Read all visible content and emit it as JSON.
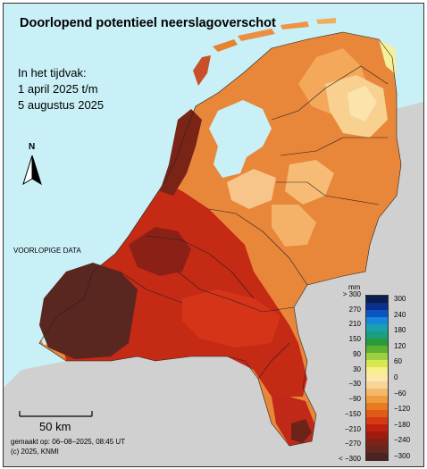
{
  "title": "Doorlopend potentieel neerslagoverschot",
  "period": {
    "line1": "In het tijdvak:",
    "line2": "1 april 2025 t/m",
    "line3": "5 augustus 2025"
  },
  "preliminary_label": "VOORLOPIGE DATA",
  "north_label": "N",
  "scale_bar_label": "50 km",
  "footer": {
    "made_on": "gemaakt op: 06–08–2025, 08:45 UT",
    "copyright": "(c) 2025, KNMI"
  },
  "legend": {
    "unit": "mm",
    "left_ticks": [
      "> 300",
      "270",
      "210",
      "150",
      "90",
      "30",
      "−30",
      "−90",
      "−150",
      "−210",
      "−270",
      "< −300"
    ],
    "right_ticks": [
      "300",
      "240",
      "180",
      "120",
      "60",
      "0",
      "−60",
      "−120",
      "−180",
      "−240",
      "−300"
    ],
    "colors": [
      "#0c1d4f",
      "#0a2f8c",
      "#0a55c0",
      "#1588d8",
      "#1aa0b0",
      "#18a080",
      "#2a9a3a",
      "#5cb032",
      "#9cd040",
      "#d8e850",
      "#f5f08a",
      "#fce8a8",
      "#f8d498",
      "#f4b86a",
      "#ee9c40",
      "#e87a20",
      "#e05a18",
      "#d43a14",
      "#c02010",
      "#a01a10",
      "#7e2218",
      "#642820",
      "#4a2420"
    ]
  },
  "colors": {
    "sea": "#c8f0f6",
    "neighbour_land": "#d0d0d0"
  }
}
